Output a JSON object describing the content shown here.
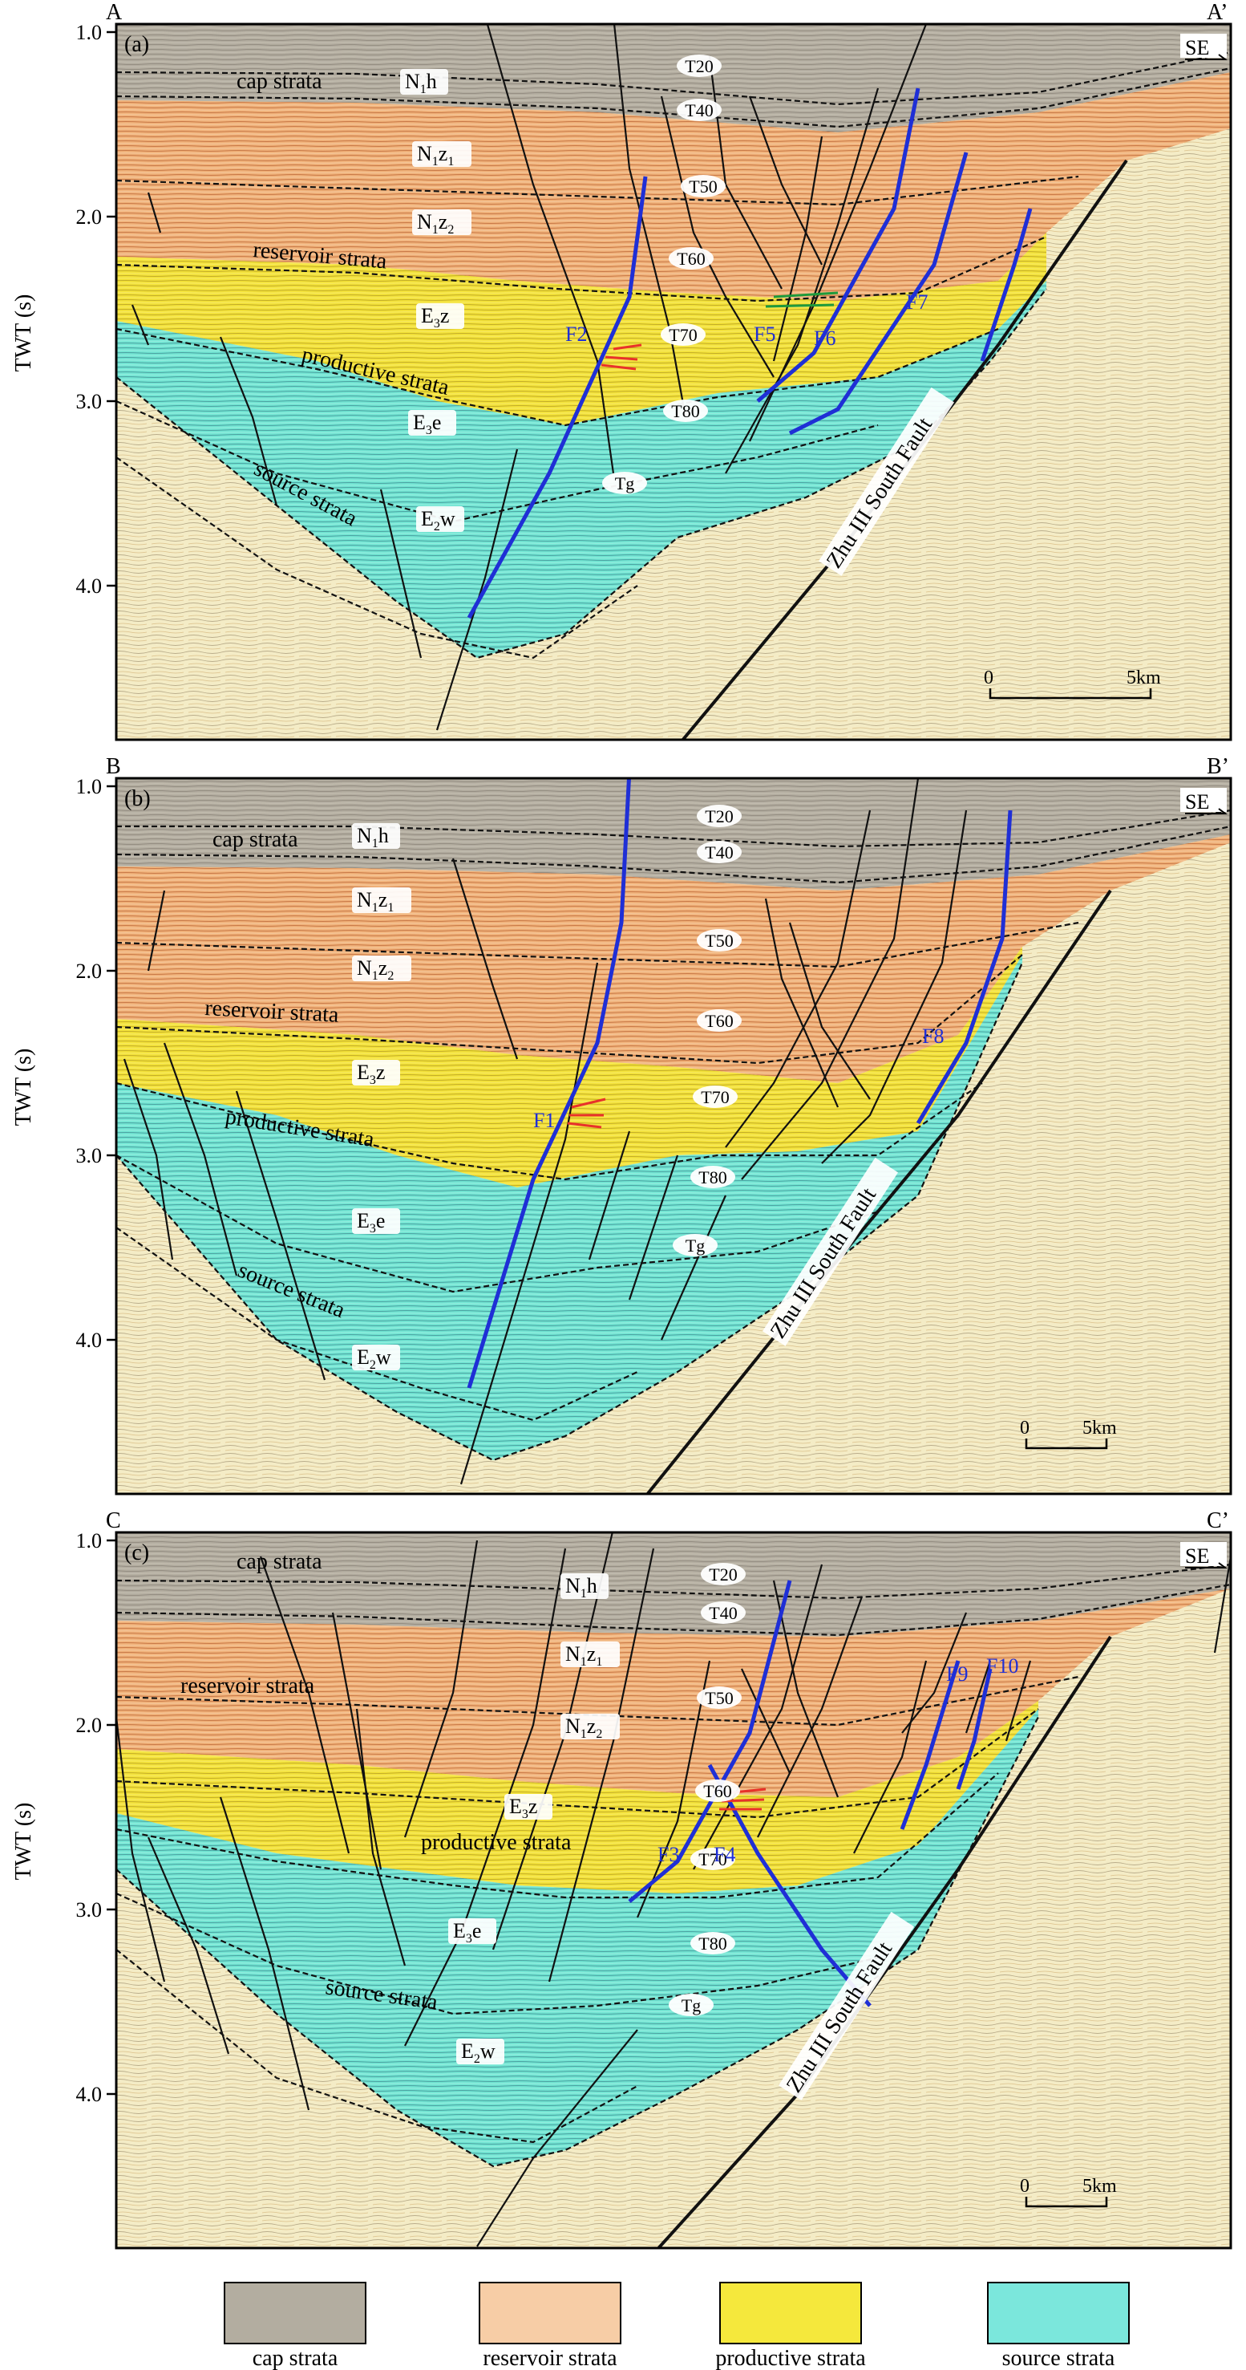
{
  "axis": {
    "label": "TWT (s)",
    "ticks": [
      "1.0",
      "2.0",
      "3.0",
      "4.0"
    ]
  },
  "direction": "SE",
  "colors": {
    "cap": "#b3ada0",
    "reservoir": "#f0b27a",
    "productive": "#f3e23a",
    "source": "#72e4d2",
    "basement": "#f4ecc6",
    "fault_black": "#111111",
    "fault_blue": "#1f2fd6",
    "horizon": "#111111",
    "red_lens": "#e8322a",
    "green_lens": "#1e9a3c"
  },
  "panels": [
    {
      "tag": "(a)",
      "line_start": "A",
      "line_end": "A’",
      "units": [
        {
          "text": "cap strata"
        },
        {
          "text": "N1h",
          "main": "N",
          "sub": "1",
          "rest": "h"
        },
        {
          "text": "N1z1",
          "main": "N",
          "sub": "1",
          "rest": "z",
          "sub2": "1"
        },
        {
          "text": "N1z2",
          "main": "N",
          "sub": "1",
          "rest": "z",
          "sub2": "2"
        },
        {
          "text": "reservoir strata"
        },
        {
          "text": "E3z",
          "main": "E",
          "sub": "3",
          "rest": "z"
        },
        {
          "text": "productive strata"
        },
        {
          "text": "E3e",
          "main": "E",
          "sub": "3",
          "rest": "e"
        },
        {
          "text": "source strata"
        },
        {
          "text": "E2w",
          "main": "E",
          "sub": "2",
          "rest": "w"
        }
      ],
      "horizons": [
        "T20",
        "T40",
        "T50",
        "T60",
        "T70",
        "T80",
        "Tg"
      ],
      "faults": [
        "F2",
        "F5",
        "F6",
        "F7"
      ],
      "main_fault": "Zhu III South Fault",
      "scale": {
        "zero": "0",
        "length": "5km"
      }
    },
    {
      "tag": "(b)",
      "line_start": "B",
      "line_end": "B’",
      "units": [
        {
          "text": "cap strata"
        },
        {
          "text": "N1h",
          "main": "N",
          "sub": "1",
          "rest": "h"
        },
        {
          "text": "N1z1",
          "main": "N",
          "sub": "1",
          "rest": "z",
          "sub2": "1"
        },
        {
          "text": "N1z2",
          "main": "N",
          "sub": "1",
          "rest": "z",
          "sub2": "2"
        },
        {
          "text": "reservoir strata"
        },
        {
          "text": "E3z",
          "main": "E",
          "sub": "3",
          "rest": "z"
        },
        {
          "text": "productive strata"
        },
        {
          "text": "E3e",
          "main": "E",
          "sub": "3",
          "rest": "e"
        },
        {
          "text": "source strata"
        },
        {
          "text": "E2w",
          "main": "E",
          "sub": "2",
          "rest": "w"
        }
      ],
      "horizons": [
        "T20",
        "T40",
        "T50",
        "T60",
        "T70",
        "T80",
        "Tg"
      ],
      "faults": [
        "F1",
        "F8"
      ],
      "main_fault": "Zhu III South Fault",
      "scale": {
        "zero": "0",
        "length": "5km"
      }
    },
    {
      "tag": "(c)",
      "line_start": "C",
      "line_end": "C’",
      "units": [
        {
          "text": "cap strata"
        },
        {
          "text": "N1h",
          "main": "N",
          "sub": "1",
          "rest": "h"
        },
        {
          "text": "reservoir strata"
        },
        {
          "text": "N1z1",
          "main": "N",
          "sub": "1",
          "rest": "z",
          "sub2": "1"
        },
        {
          "text": "N1z2",
          "main": "N",
          "sub": "1",
          "rest": "z",
          "sub2": "2"
        },
        {
          "text": "E3z",
          "main": "E",
          "sub": "3",
          "rest": "z"
        },
        {
          "text": "productive strata"
        },
        {
          "text": "E3e",
          "main": "E",
          "sub": "3",
          "rest": "e"
        },
        {
          "text": "source strata"
        },
        {
          "text": "E2w",
          "main": "E",
          "sub": "2",
          "rest": "w"
        }
      ],
      "horizons": [
        "T20",
        "T40",
        "T50",
        "T60",
        "T70",
        "T80",
        "Tg"
      ],
      "faults": [
        "F3",
        "F4",
        "F9",
        "F10"
      ],
      "main_fault": "Zhu III South Fault",
      "scale": {
        "zero": "0",
        "length": "5km"
      }
    }
  ],
  "legend": [
    {
      "label": "cap strata",
      "color": "#b3ada0"
    },
    {
      "label": "reservoir strata",
      "color": "#f7cda6"
    },
    {
      "label": "productive strata",
      "color": "#f5e83c"
    },
    {
      "label": "source strata",
      "color": "#7be7dc"
    }
  ]
}
